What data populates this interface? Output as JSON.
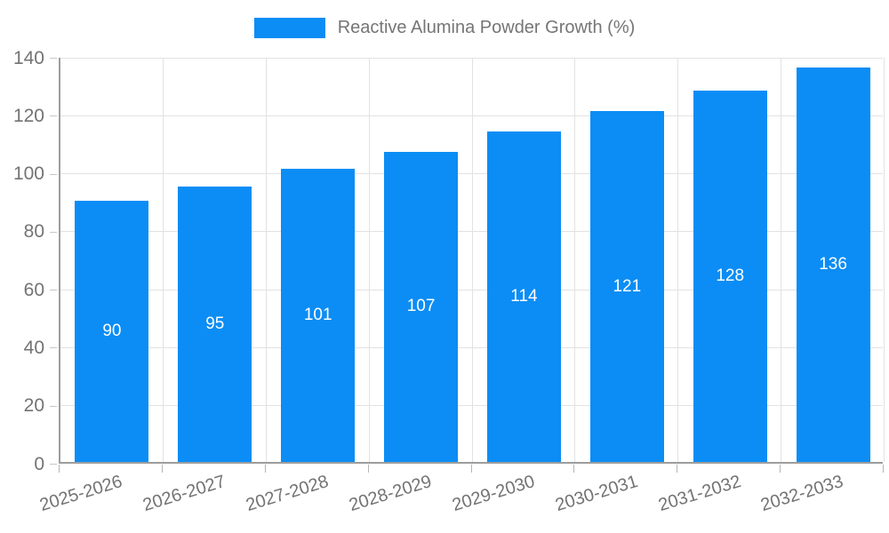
{
  "legend": {
    "label": "Reactive Alumina Powder Growth (%)"
  },
  "chart_data": {
    "type": "bar",
    "title": "Reactive Alumina Powder Growth (%)",
    "categories": [
      "2025-2026",
      "2026-2027",
      "2027-2028",
      "2028-2029",
      "2029-2030",
      "2030-2031",
      "2031-2032",
      "2032-2033"
    ],
    "values": [
      90,
      95,
      101,
      107,
      114,
      121,
      128,
      136
    ],
    "xlabel": "",
    "ylabel": "",
    "ylim": [
      0,
      140
    ],
    "yticks": [
      0,
      20,
      40,
      60,
      80,
      100,
      120,
      140
    ],
    "grid": true,
    "legend_position": "top",
    "bar_color": "#0b8df5",
    "value_label_color": "#ffffff",
    "axis_text_color": "#737373"
  }
}
